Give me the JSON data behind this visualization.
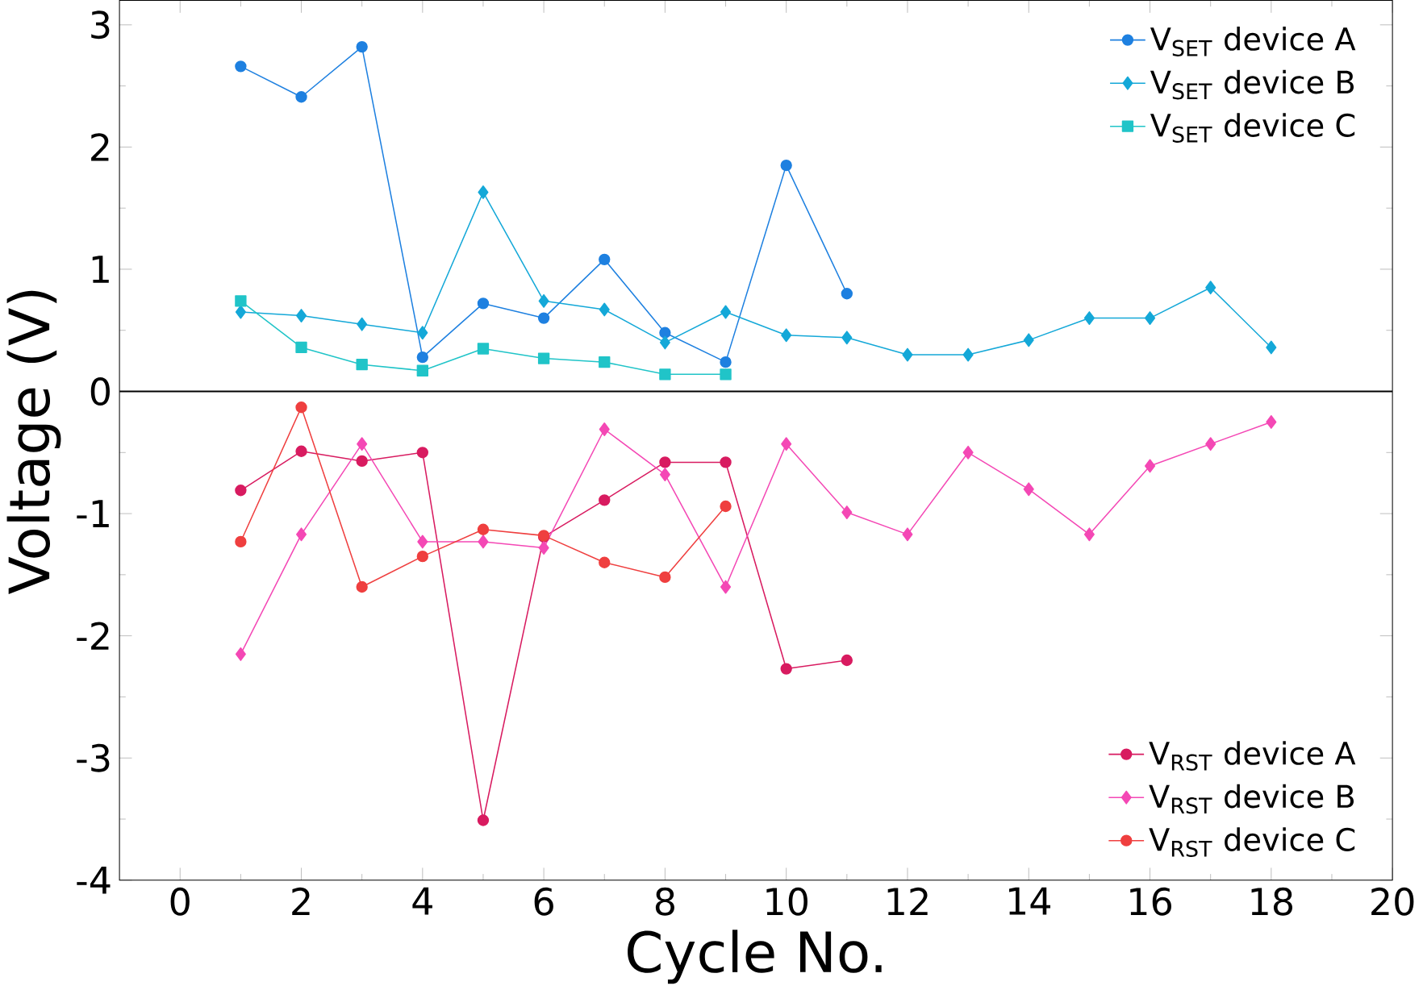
{
  "chart_data": {
    "type": "line",
    "xlabel": "Cycle No.",
    "ylabel": "Voltage (V)",
    "xlim": [
      -1,
      20
    ],
    "xticks": [
      0,
      2,
      4,
      6,
      8,
      10,
      12,
      14,
      16,
      18,
      20
    ],
    "ylim": [
      -4,
      3.2
    ],
    "yticks": [
      -4,
      -3,
      -2,
      -1,
      0,
      1,
      2,
      3
    ],
    "legend": "right",
    "ref_lines": [
      {
        "axis": "y",
        "value": 0,
        "color": "#000000"
      }
    ],
    "series": [
      {
        "name": "V$_{SET}$ device A",
        "color": "#1e80e0",
        "marker": "circle",
        "x": [
          1,
          2,
          3,
          4,
          5,
          6,
          7,
          8,
          9,
          10,
          11
        ],
        "values": [
          2.66,
          2.41,
          2.82,
          0.28,
          0.72,
          0.6,
          1.08,
          0.48,
          0.24,
          1.85,
          0.8
        ]
      },
      {
        "name": "V$_{SET}$ device B",
        "color": "#14a8d8",
        "marker": "diamond",
        "x": [
          1,
          2,
          3,
          4,
          5,
          6,
          7,
          8,
          9,
          10,
          11,
          12,
          13,
          14,
          15,
          16,
          17,
          18
        ],
        "values": [
          0.65,
          0.62,
          0.55,
          0.48,
          1.63,
          0.74,
          0.67,
          0.4,
          0.65,
          0.46,
          0.44,
          0.3,
          0.3,
          0.42,
          0.6,
          0.6,
          0.85,
          0.36
        ]
      },
      {
        "name": "V$_{SET}$ device C",
        "color": "#20c4c8",
        "marker": "square",
        "x": [
          1,
          2,
          3,
          4,
          5,
          6,
          7,
          8,
          9
        ],
        "values": [
          0.74,
          0.36,
          0.22,
          0.17,
          0.35,
          0.27,
          0.24,
          0.14,
          0.14
        ]
      },
      {
        "name": "V$_{RST}$ device A",
        "color": "#d81b60",
        "marker": "circle",
        "x": [
          1,
          2,
          3,
          4,
          5,
          6,
          7,
          8,
          9,
          10,
          11
        ],
        "values": [
          -0.81,
          -0.49,
          -0.57,
          -0.5,
          -3.51,
          -1.19,
          -0.89,
          -0.58,
          -0.58,
          -2.27,
          -2.2
        ]
      },
      {
        "name": "V$_{RST}$ device B",
        "color": "#f448b5",
        "marker": "diamond",
        "x": [
          1,
          2,
          3,
          4,
          5,
          6,
          7,
          8,
          9,
          10,
          11,
          12,
          13,
          14,
          15,
          16,
          17,
          18
        ],
        "values": [
          -2.15,
          -1.17,
          -0.43,
          -1.23,
          -1.23,
          -1.28,
          -0.31,
          -0.68,
          -1.6,
          -0.43,
          -0.99,
          -1.17,
          -0.5,
          -0.8,
          -1.17,
          -0.61,
          -0.43,
          -0.25
        ]
      },
      {
        "name": "V$_{RST}$ device C",
        "color": "#ef3f3f",
        "marker": "circle",
        "x": [
          1,
          2,
          3,
          4,
          5,
          6,
          7,
          8,
          9
        ],
        "values": [
          -1.23,
          -0.13,
          -1.6,
          -1.35,
          -1.13,
          -1.18,
          -1.4,
          -1.52,
          -0.94
        ]
      }
    ]
  }
}
